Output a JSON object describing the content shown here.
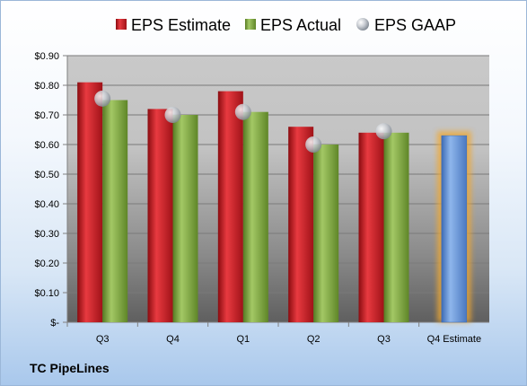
{
  "company": "TC PipeLines",
  "chart_data": {
    "type": "bar",
    "categories": [
      "Q3",
      "Q4",
      "Q1",
      "Q2",
      "Q3",
      "Q4 Estimate"
    ],
    "series": [
      {
        "name": "EPS Estimate",
        "values": [
          0.81,
          0.72,
          0.78,
          0.66,
          0.64,
          null
        ],
        "color": "#c0141c"
      },
      {
        "name": "EPS Actual",
        "values": [
          0.75,
          0.7,
          0.71,
          0.6,
          0.64,
          null
        ],
        "color": "#7aa23a"
      },
      {
        "name": "EPS GAAP",
        "values": [
          0.755,
          0.7,
          0.71,
          0.6,
          0.645,
          null
        ],
        "color": "#b8bec6"
      },
      {
        "name": "Q4 Estimate",
        "values": [
          null,
          null,
          null,
          null,
          null,
          0.63
        ],
        "color": "#5b8fd6",
        "highlight": "#f0a830"
      }
    ],
    "ylim": [
      0,
      0.9
    ],
    "yticks": [
      {
        "value": 0.9,
        "label": "$0.90"
      },
      {
        "value": 0.8,
        "label": "$0.80"
      },
      {
        "value": 0.7,
        "label": "$0.70"
      },
      {
        "value": 0.6,
        "label": "$0.60"
      },
      {
        "value": 0.5,
        "label": "$0.50"
      },
      {
        "value": 0.4,
        "label": "$0.40"
      },
      {
        "value": 0.3,
        "label": "$0.30"
      },
      {
        "value": 0.2,
        "label": "$0.20"
      },
      {
        "value": 0.1,
        "label": "$0.10"
      },
      {
        "value": 0,
        "label": "$-"
      }
    ],
    "legend": [
      "EPS Estimate",
      "EPS Actual",
      "EPS GAAP"
    ],
    "legend_position": "top",
    "grid": true
  }
}
